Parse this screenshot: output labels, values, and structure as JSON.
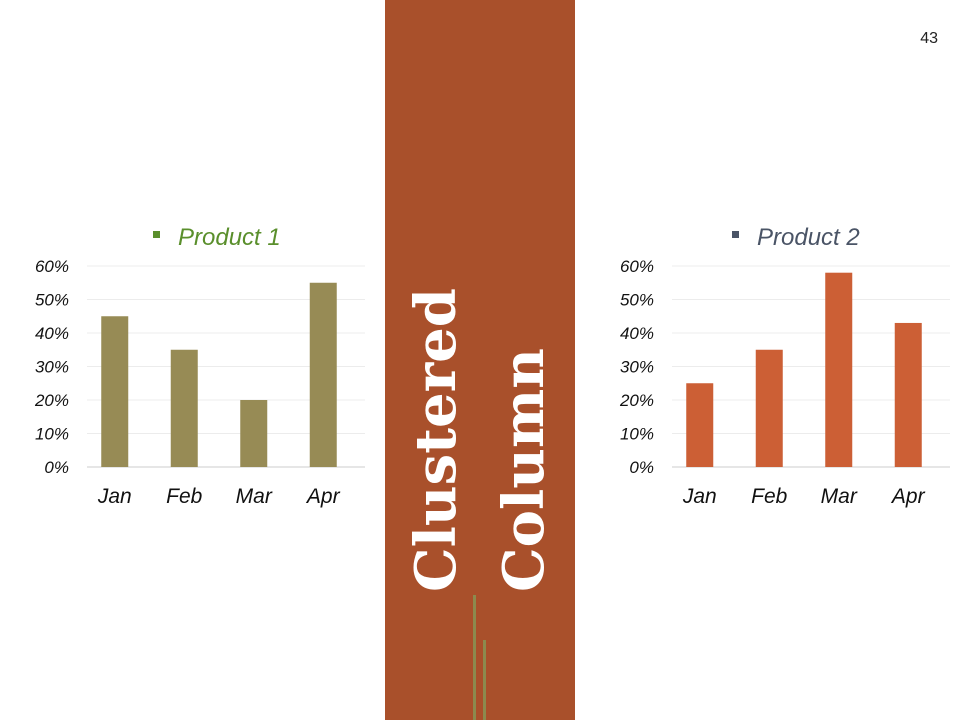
{
  "page_number": "43",
  "center_title": {
    "line1": "Clustered",
    "line2": "Column",
    "band_color": "#a9502b"
  },
  "chart_data": [
    {
      "type": "bar",
      "categories": [
        "Jan",
        "Feb",
        "Mar",
        "Apr"
      ],
      "series": [
        {
          "name": "Product 1",
          "values": [
            45,
            35,
            20,
            55
          ]
        }
      ],
      "yticks": [
        "0%",
        "10%",
        "20%",
        "30%",
        "40%",
        "50%",
        "60%"
      ],
      "ylim": [
        0,
        60
      ],
      "title": "",
      "xlabel": "",
      "ylabel": "",
      "grid": true,
      "legend": "top",
      "bar_color": "#978b55",
      "legend_color": "#5a8f2c"
    },
    {
      "type": "bar",
      "categories": [
        "Jan",
        "Feb",
        "Mar",
        "Apr"
      ],
      "series": [
        {
          "name": "Product 2",
          "values": [
            25,
            35,
            58,
            43
          ]
        }
      ],
      "yticks": [
        "0%",
        "10%",
        "20%",
        "30%",
        "40%",
        "50%",
        "60%"
      ],
      "ylim": [
        0,
        60
      ],
      "title": "",
      "xlabel": "",
      "ylabel": "",
      "grid": true,
      "legend": "top",
      "bar_color": "#cc5f35",
      "legend_color": "#4a5466"
    }
  ]
}
